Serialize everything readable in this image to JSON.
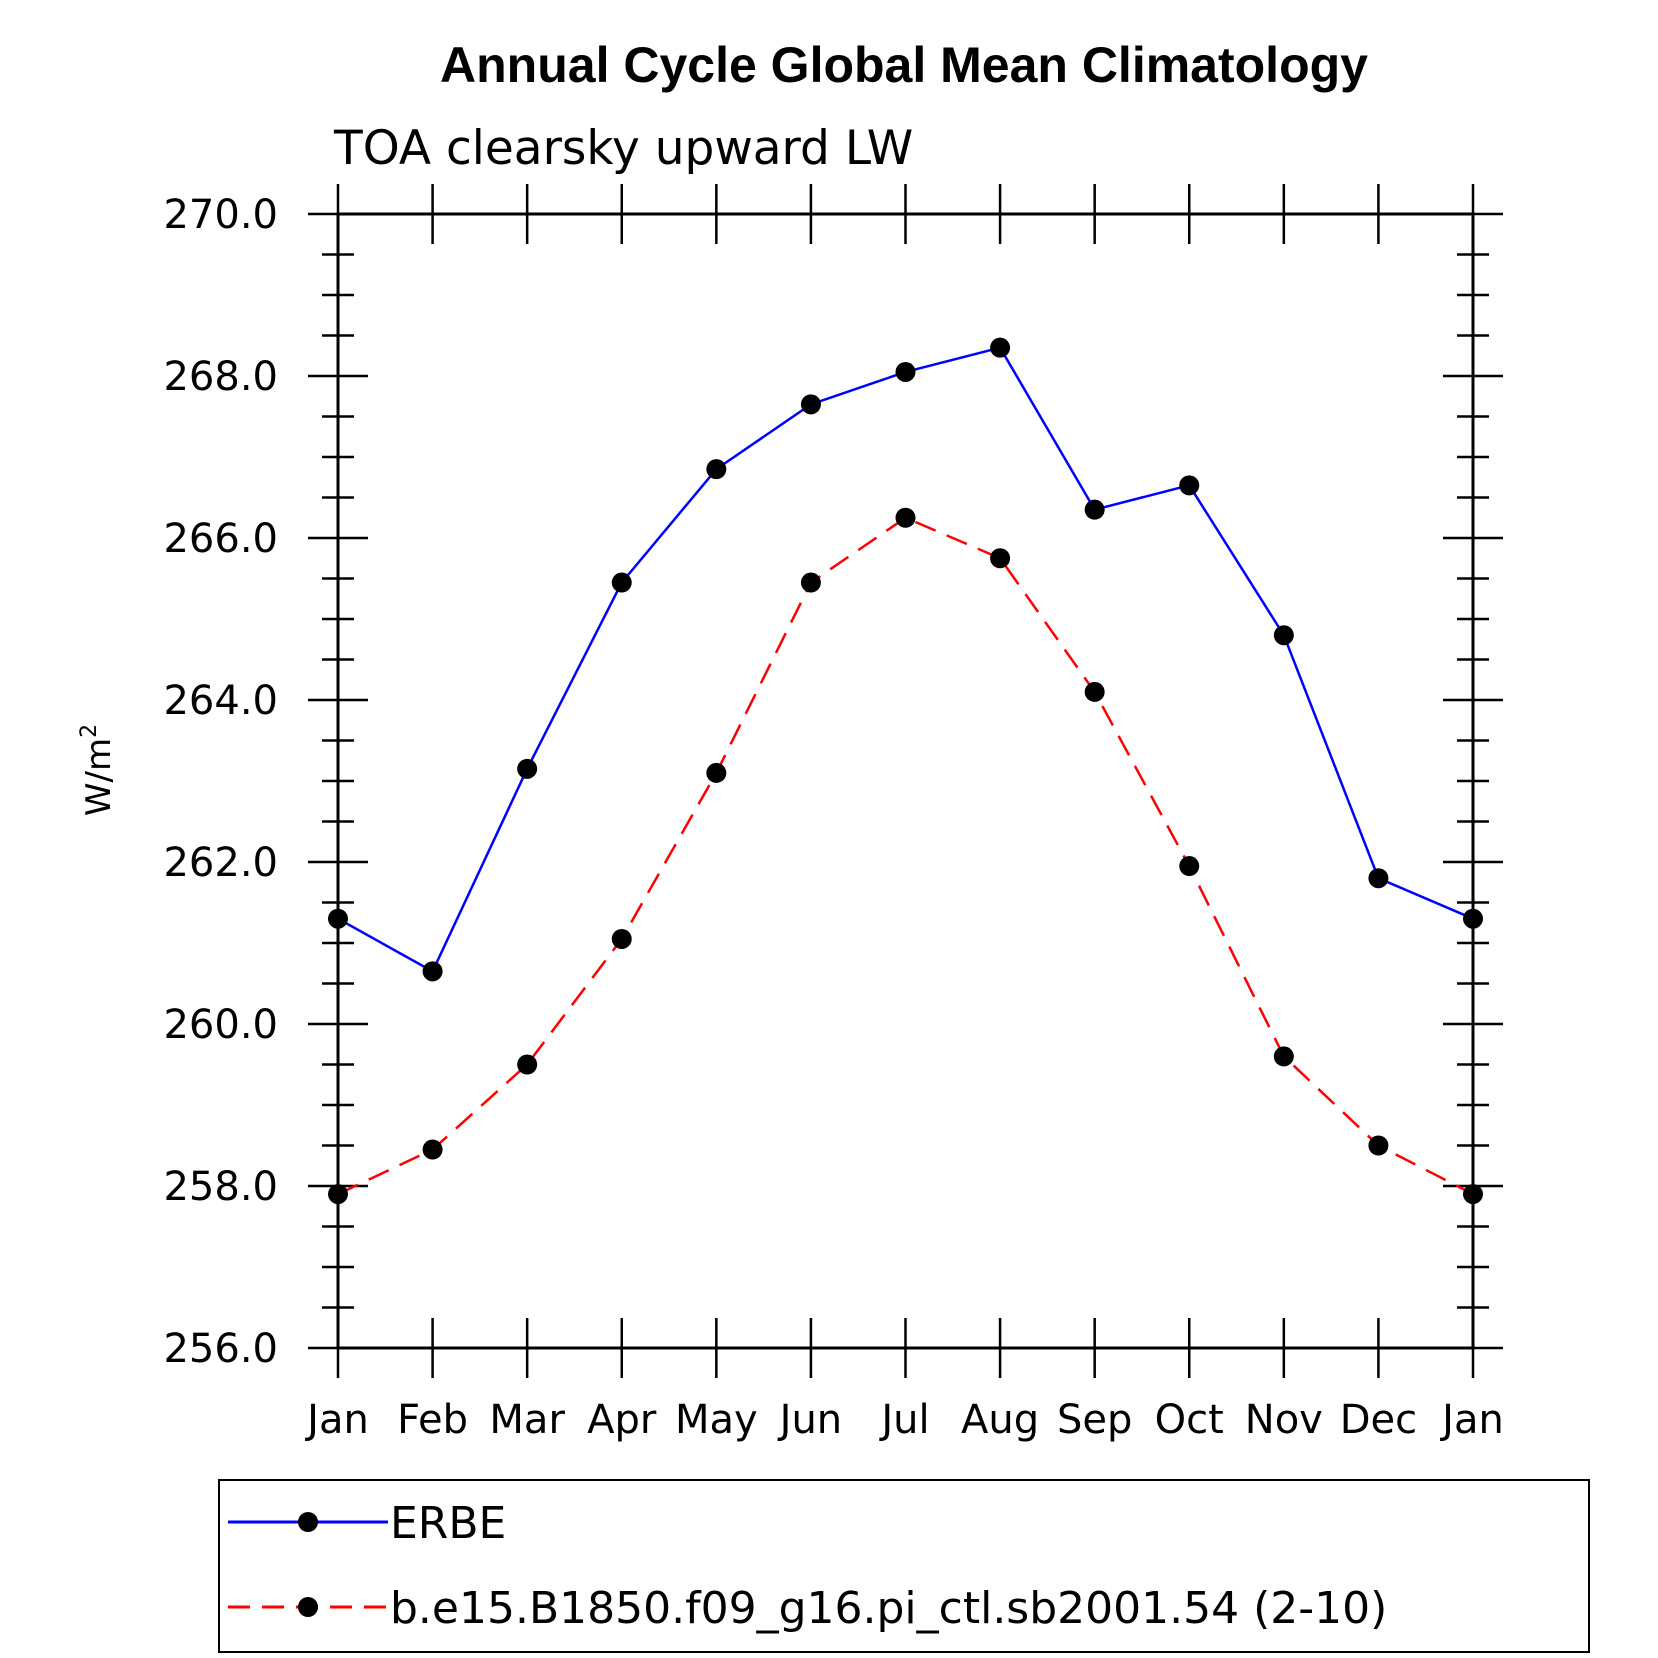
{
  "chart_data": {
    "type": "line",
    "title": "Annual Cycle Global Mean Climatology",
    "subtitle": "TOA clearsky upward LW",
    "ylabel": "W/m",
    "ylabel_sup": "2",
    "ylim": [
      256,
      270
    ],
    "yticks": [
      "256.0",
      "258.0",
      "260.0",
      "262.0",
      "264.0",
      "266.0",
      "268.0",
      "270.0"
    ],
    "categories": [
      "Jan",
      "Feb",
      "Mar",
      "Apr",
      "May",
      "Jun",
      "Jul",
      "Aug",
      "Sep",
      "Oct",
      "Nov",
      "Dec",
      "Jan"
    ],
    "series": [
      {
        "name": "ERBE",
        "color": "#0000ff",
        "dash": "solid",
        "values": [
          261.3,
          260.65,
          263.15,
          265.45,
          266.85,
          267.65,
          268.05,
          268.35,
          266.35,
          266.65,
          264.8,
          261.8,
          261.3
        ]
      },
      {
        "name": "b.e15.B1850.f09_g16.pi_ctl.sb2001.54 (2-10)",
        "color": "#ff0000",
        "dash": "dashed",
        "values": [
          257.9,
          258.45,
          259.5,
          261.05,
          263.1,
          265.45,
          266.25,
          265.75,
          264.1,
          261.95,
          259.6,
          258.5,
          257.9
        ]
      }
    ],
    "legend_position": "bottom"
  }
}
